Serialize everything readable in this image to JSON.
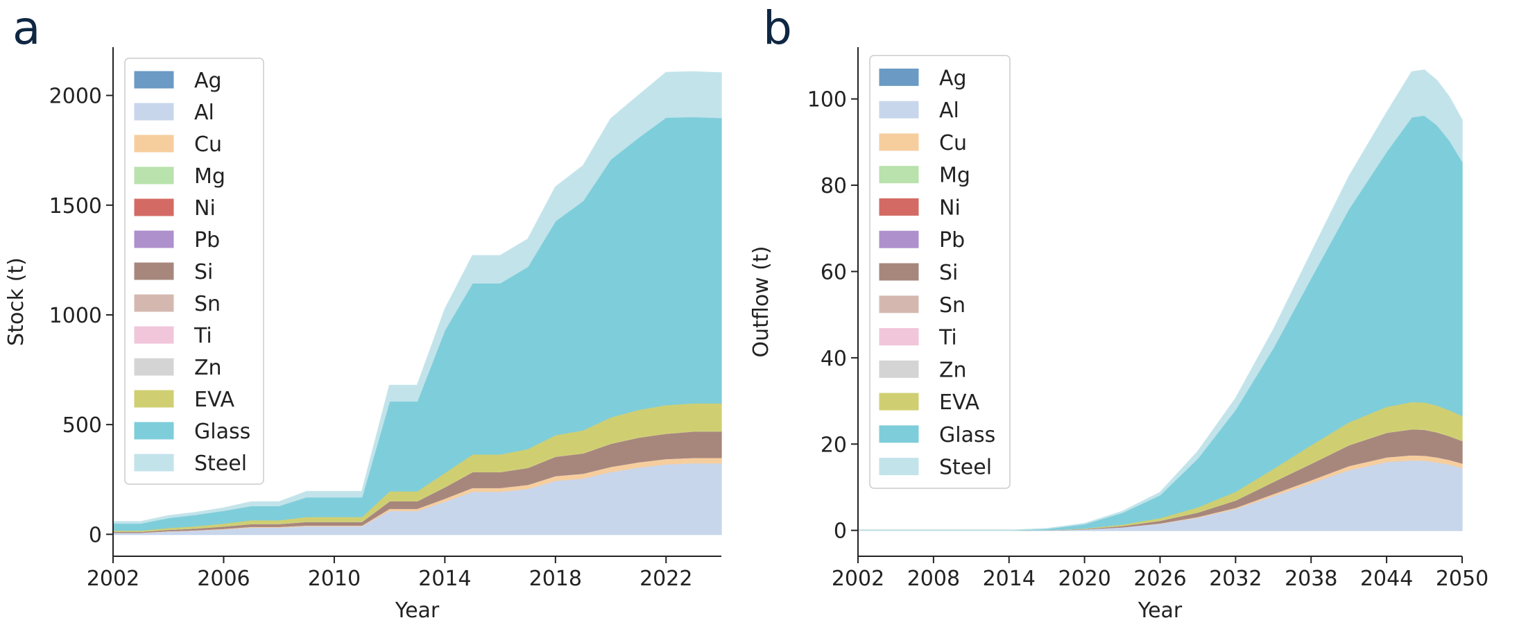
{
  "panels": [
    {
      "letter": "a"
    },
    {
      "letter": "b"
    }
  ],
  "chart_data": [
    {
      "type": "area",
      "ylabel": "Stock (t)",
      "xlabel": "Year",
      "xlim": [
        2002,
        2024
      ],
      "ylim": [
        -100,
        2220
      ],
      "xticks": [
        2002,
        2006,
        2010,
        2014,
        2018,
        2022
      ],
      "yticks": [
        0,
        500,
        1000,
        1500,
        2000
      ],
      "x": [
        2002,
        2003,
        2004,
        2005,
        2006,
        2007,
        2008,
        2009,
        2010,
        2011,
        2012,
        2013,
        2014,
        2015,
        2016,
        2017,
        2018,
        2019,
        2020,
        2021,
        2022,
        2023,
        2024
      ],
      "series": [
        {
          "name": "Ag",
          "color": "#6b9ac4",
          "values": [
            0,
            0,
            0,
            0,
            0,
            0,
            0,
            0,
            0,
            0,
            0,
            0,
            0,
            0,
            0,
            0,
            0,
            0,
            0,
            0,
            0,
            0,
            0
          ]
        },
        {
          "name": "Al",
          "color": "#c8d6ec",
          "values": [
            8,
            8,
            14,
            18,
            24,
            32,
            32,
            38,
            38,
            38,
            108,
            108,
            150,
            195,
            195,
            208,
            245,
            255,
            285,
            305,
            320,
            325,
            325
          ]
        },
        {
          "name": "Cu",
          "color": "#f6ce9e",
          "values": [
            1,
            1,
            2,
            2,
            3,
            4,
            4,
            4,
            4,
            4,
            10,
            10,
            14,
            18,
            18,
            19,
            22,
            23,
            24,
            25,
            25,
            25,
            25
          ]
        },
        {
          "name": "Mg",
          "color": "#b9e2ad",
          "values": [
            0,
            0,
            0,
            0,
            0,
            0,
            0,
            0,
            0,
            0,
            0,
            0,
            0,
            0,
            0,
            0,
            0,
            0,
            0,
            0,
            0,
            0,
            0
          ]
        },
        {
          "name": "Ni",
          "color": "#d36b64",
          "values": [
            0,
            0,
            0,
            0,
            0,
            0,
            0,
            0,
            0,
            0,
            0,
            0,
            0,
            0,
            0,
            0,
            0,
            0,
            0,
            0,
            0,
            0,
            0
          ]
        },
        {
          "name": "Pb",
          "color": "#ad90cc",
          "values": [
            0,
            0,
            0,
            0,
            0,
            0,
            0,
            0,
            0,
            0,
            0,
            0,
            0,
            0,
            0,
            0,
            0,
            0,
            0,
            0,
            0,
            0,
            0
          ]
        },
        {
          "name": "Si",
          "color": "#a7877c",
          "values": [
            4,
            4,
            6,
            8,
            10,
            12,
            12,
            16,
            16,
            16,
            34,
            34,
            52,
            72,
            72,
            77,
            88,
            92,
            105,
            112,
            115,
            120,
            120
          ]
        },
        {
          "name": "Sn",
          "color": "#d4b8b0",
          "values": [
            0,
            0,
            0,
            0,
            0,
            0,
            0,
            0,
            0,
            0,
            0,
            0,
            0,
            0,
            0,
            0,
            0,
            0,
            0,
            0,
            0,
            0,
            0
          ]
        },
        {
          "name": "Ti",
          "color": "#f1c6da",
          "values": [
            0,
            0,
            0,
            0,
            0,
            0,
            0,
            0,
            0,
            0,
            0,
            0,
            0,
            0,
            0,
            0,
            0,
            0,
            0,
            0,
            0,
            0,
            0
          ]
        },
        {
          "name": "Zn",
          "color": "#d4d4d4",
          "values": [
            0,
            0,
            0,
            0,
            0,
            0,
            0,
            0,
            0,
            0,
            0,
            0,
            0,
            0,
            0,
            0,
            0,
            0,
            0,
            0,
            0,
            0,
            0
          ]
        },
        {
          "name": "EVA",
          "color": "#cfcf72",
          "values": [
            5,
            5,
            8,
            10,
            13,
            17,
            17,
            22,
            22,
            22,
            45,
            45,
            65,
            80,
            80,
            86,
            98,
            105,
            120,
            126,
            130,
            128,
            128
          ]
        },
        {
          "name": "Glass",
          "color": "#7ecdda",
          "values": [
            32,
            32,
            45,
            52,
            58,
            65,
            65,
            90,
            90,
            90,
            410,
            410,
            650,
            780,
            780,
            830,
            975,
            1045,
            1175,
            1240,
            1310,
            1305,
            1300
          ]
        },
        {
          "name": "Steel",
          "color": "#c2e3ea",
          "values": [
            8,
            8,
            10,
            10,
            12,
            18,
            18,
            25,
            25,
            25,
            72,
            72,
            95,
            125,
            125,
            125,
            155,
            160,
            185,
            192,
            205,
            205,
            205
          ]
        }
      ]
    },
    {
      "type": "area",
      "ylabel": "Outflow (t)",
      "xlabel": "Year",
      "xlim": [
        2002,
        2050
      ],
      "ylim": [
        -6,
        112
      ],
      "xticks": [
        2002,
        2008,
        2014,
        2020,
        2026,
        2032,
        2038,
        2044,
        2050
      ],
      "yticks": [
        0,
        20,
        40,
        60,
        80,
        100
      ],
      "x": [
        2002,
        2014,
        2017,
        2020,
        2023,
        2026,
        2029,
        2032,
        2035,
        2038,
        2041,
        2044,
        2046,
        2047,
        2048,
        2049,
        2050
      ],
      "series": [
        {
          "name": "Ag",
          "color": "#6b9ac4",
          "values": [
            0,
            0,
            0,
            0,
            0,
            0,
            0,
            0,
            0,
            0,
            0,
            0,
            0,
            0,
            0,
            0,
            0
          ]
        },
        {
          "name": "Al",
          "color": "#c8d6ec",
          "values": [
            0,
            0,
            0.1,
            0.3,
            0.8,
            1.6,
            3.0,
            5.0,
            8.0,
            11.0,
            14.0,
            15.9,
            16.3,
            16.2,
            15.8,
            15.3,
            14.5
          ]
        },
        {
          "name": "Cu",
          "color": "#f6ce9e",
          "values": [
            0,
            0,
            0,
            0,
            0,
            0.1,
            0.2,
            0.3,
            0.5,
            0.7,
            1.0,
            1.1,
            1.2,
            1.2,
            1.2,
            1.1,
            1.1
          ]
        },
        {
          "name": "Mg",
          "color": "#b9e2ad",
          "values": [
            0,
            0,
            0,
            0,
            0,
            0,
            0,
            0,
            0,
            0,
            0,
            0,
            0,
            0,
            0,
            0,
            0
          ]
        },
        {
          "name": "Ni",
          "color": "#d36b64",
          "values": [
            0,
            0,
            0,
            0,
            0,
            0,
            0,
            0,
            0,
            0,
            0,
            0,
            0,
            0,
            0,
            0,
            0
          ]
        },
        {
          "name": "Pb",
          "color": "#ad90cc",
          "values": [
            0,
            0,
            0,
            0,
            0,
            0,
            0,
            0,
            0,
            0,
            0,
            0,
            0,
            0,
            0,
            0,
            0
          ]
        },
        {
          "name": "Si",
          "color": "#a7877c",
          "values": [
            0,
            0,
            0,
            0.1,
            0.3,
            0.6,
            1.0,
            1.7,
            2.8,
            3.8,
            4.8,
            5.7,
            6.0,
            6.0,
            5.8,
            5.5,
            5.2
          ]
        },
        {
          "name": "Sn",
          "color": "#d4b8b0",
          "values": [
            0,
            0,
            0,
            0,
            0,
            0,
            0,
            0,
            0,
            0,
            0,
            0,
            0,
            0,
            0,
            0,
            0
          ]
        },
        {
          "name": "Ti",
          "color": "#f1c6da",
          "values": [
            0,
            0,
            0,
            0,
            0,
            0,
            0,
            0,
            0,
            0,
            0,
            0,
            0,
            0,
            0,
            0,
            0
          ]
        },
        {
          "name": "Zn",
          "color": "#d4d4d4",
          "values": [
            0,
            0,
            0,
            0,
            0,
            0,
            0,
            0,
            0,
            0,
            0,
            0,
            0,
            0,
            0,
            0,
            0
          ]
        },
        {
          "name": "EVA",
          "color": "#cfcf72",
          "values": [
            0,
            0,
            0,
            0.1,
            0.3,
            0.6,
            1.2,
            2.0,
            3.0,
            4.3,
            5.3,
            6.0,
            6.3,
            6.3,
            6.2,
            6.0,
            5.8
          ]
        },
        {
          "name": "Glass",
          "color": "#7ecdda",
          "values": [
            0,
            0,
            0.3,
            1.0,
            2.7,
            5.3,
            11.3,
            19.0,
            28.0,
            38.7,
            49.4,
            59.1,
            66.0,
            66.5,
            65.0,
            62.5,
            59.0
          ]
        },
        {
          "name": "Steel",
          "color": "#c2e3ea",
          "values": [
            0,
            0,
            0,
            0.1,
            0.3,
            0.6,
            1.6,
            2.6,
            4.2,
            5.8,
            7.5,
            9.0,
            10.5,
            10.5,
            10.3,
            10.0,
            9.5
          ]
        }
      ]
    }
  ]
}
